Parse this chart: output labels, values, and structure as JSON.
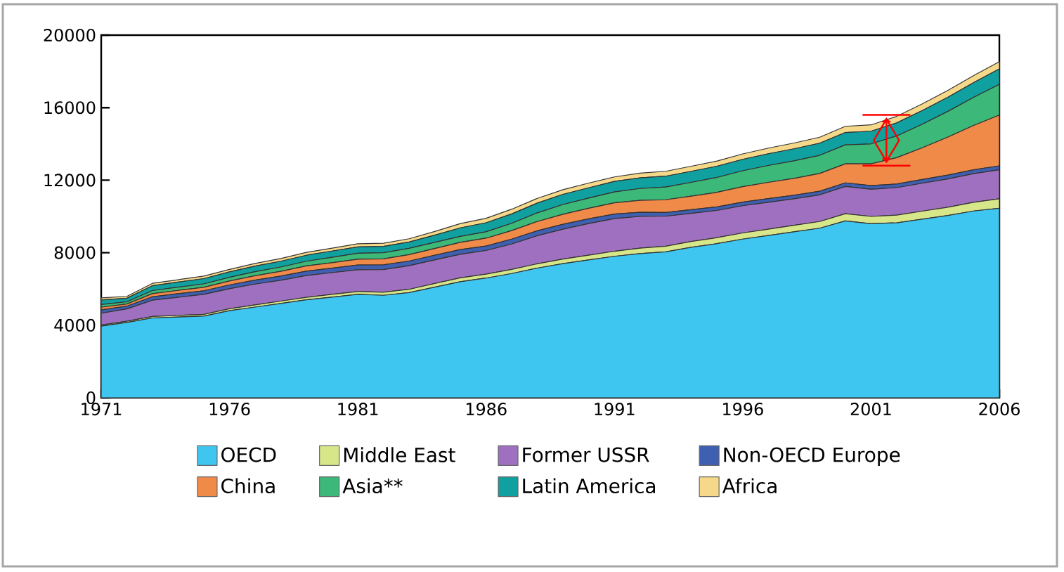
{
  "chart_data": {
    "type": "area",
    "stacked": true,
    "legend": "bottom",
    "grid": false,
    "marker": "none",
    "x": [
      1971,
      1972,
      1973,
      1974,
      1975,
      1976,
      1977,
      1978,
      1979,
      1980,
      1981,
      1982,
      1983,
      1984,
      1985,
      1986,
      1987,
      1988,
      1989,
      1990,
      1991,
      1992,
      1993,
      1994,
      1995,
      1996,
      1997,
      1998,
      1999,
      2000,
      2001,
      2002,
      2003,
      2004,
      2005,
      2006
    ],
    "xlim": [
      1971,
      2006
    ],
    "xticks": [
      1971,
      1976,
      1981,
      1986,
      1991,
      1996,
      2001,
      2006
    ],
    "ylim": [
      0,
      20000
    ],
    "yticks": [
      0,
      4000,
      8000,
      12000,
      16000,
      20000
    ],
    "series": [
      {
        "name": "OECD",
        "color": "#3ec6f0",
        "values": [
          3950,
          4150,
          4400,
          4450,
          4500,
          4800,
          5000,
          5200,
          5400,
          5550,
          5700,
          5650,
          5800,
          6100,
          6400,
          6600,
          6850,
          7150,
          7400,
          7600,
          7800,
          7950,
          8050,
          8300,
          8500,
          8750,
          8950,
          9150,
          9350,
          9750,
          9600,
          9650,
          9850,
          10050,
          10300,
          10450
        ]
      },
      {
        "name": "Middle East",
        "color": "#d8e68a",
        "values": [
          60,
          70,
          80,
          90,
          100,
          110,
          120,
          130,
          140,
          150,
          160,
          170,
          180,
          200,
          210,
          220,
          230,
          240,
          250,
          260,
          280,
          300,
          310,
          320,
          330,
          340,
          350,
          360,
          370,
          400,
          400,
          420,
          440,
          460,
          480,
          520
        ]
      },
      {
        "name": "Former USSR",
        "color": "#a070c0",
        "values": [
          650,
          680,
          900,
          1000,
          1100,
          1100,
          1150,
          1150,
          1200,
          1200,
          1200,
          1250,
          1300,
          1300,
          1300,
          1300,
          1400,
          1550,
          1650,
          1750,
          1800,
          1750,
          1650,
          1550,
          1500,
          1500,
          1480,
          1460,
          1470,
          1500,
          1500,
          1520,
          1540,
          1560,
          1580,
          1600
        ]
      },
      {
        "name": "Non-OECD Europe",
        "color": "#3f5fb0",
        "values": [
          180,
          150,
          190,
          200,
          200,
          210,
          220,
          230,
          240,
          250,
          260,
          260,
          260,
          260,
          260,
          250,
          270,
          270,
          270,
          260,
          250,
          230,
          210,
          200,
          200,
          200,
          200,
          200,
          200,
          200,
          200,
          200,
          210,
          210,
          210,
          220
        ]
      },
      {
        "name": "China",
        "color": "#f08a48",
        "values": [
          150,
          120,
          170,
          180,
          190,
          220,
          240,
          260,
          290,
          300,
          320,
          330,
          350,
          370,
          400,
          430,
          470,
          510,
          550,
          580,
          620,
          660,
          700,
          750,
          800,
          850,
          900,
          930,
          980,
          1050,
          1200,
          1450,
          1750,
          2100,
          2450,
          2800
        ]
      },
      {
        "name": "Asia**",
        "color": "#3cb878",
        "values": [
          150,
          120,
          170,
          180,
          190,
          200,
          220,
          240,
          260,
          300,
          330,
          340,
          350,
          340,
          330,
          350,
          400,
          480,
          540,
          560,
          600,
          650,
          700,
          760,
          820,
          880,
          930,
          970,
          1000,
          1050,
          1100,
          1200,
          1300,
          1420,
          1550,
          1700
        ]
      },
      {
        "name": "Latin America",
        "color": "#10a0a0",
        "values": [
          250,
          200,
          270,
          280,
          290,
          300,
          310,
          320,
          330,
          340,
          350,
          350,
          350,
          400,
          470,
          500,
          520,
          540,
          560,
          570,
          580,
          590,
          600,
          610,
          620,
          630,
          650,
          660,
          670,
          680,
          700,
          720,
          750,
          780,
          810,
          850
        ]
      },
      {
        "name": "Africa",
        "color": "#f5d88a",
        "values": [
          120,
          100,
          130,
          130,
          140,
          140,
          150,
          150,
          160,
          160,
          170,
          170,
          180,
          200,
          240,
          250,
          260,
          260,
          260,
          260,
          250,
          260,
          270,
          280,
          290,
          300,
          310,
          320,
          330,
          340,
          350,
          360,
          370,
          380,
          390,
          400
        ]
      }
    ]
  }
}
